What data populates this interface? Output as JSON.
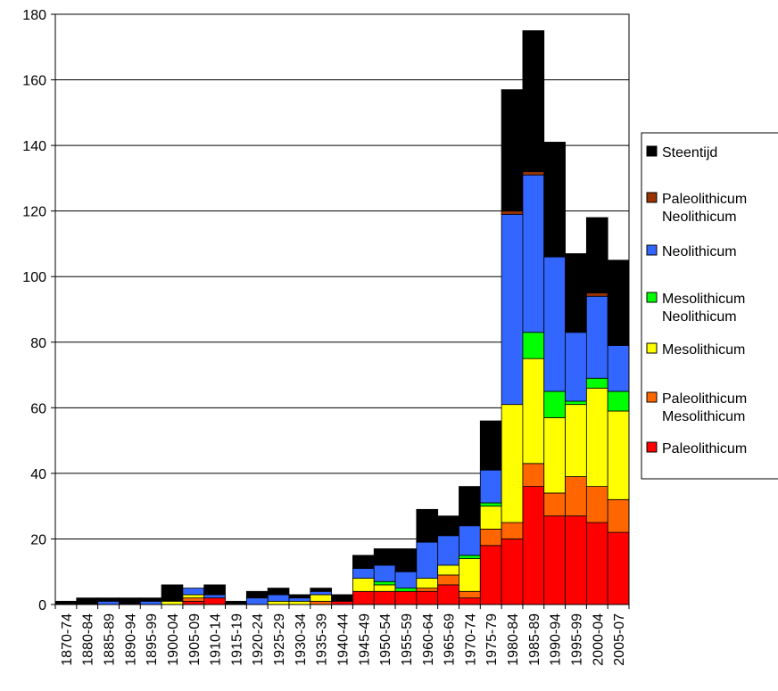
{
  "chart_data": {
    "type": "bar",
    "stacked": true,
    "categories": [
      "1870-74",
      "1880-84",
      "1885-89",
      "1890-94",
      "1895-99",
      "1900-04",
      "1905-09",
      "1910-14",
      "1915-19",
      "1920-24",
      "1925-29",
      "1930-34",
      "1935-39",
      "1940-44",
      "1945-49",
      "1950-54",
      "1955-59",
      "1960-64",
      "1965-69",
      "1970-74",
      "1975-79",
      "1980-84",
      "1985-89",
      "1990-94",
      "1995-99",
      "2000-04",
      "2005-07"
    ],
    "series": [
      {
        "name": "Paleolithicum",
        "color": "#ff0000",
        "values": [
          0,
          0,
          0,
          0,
          0,
          0,
          1,
          2,
          0,
          0,
          0,
          0,
          0,
          1,
          4,
          4,
          4,
          4,
          6,
          2,
          18,
          20,
          36,
          27,
          27,
          25,
          22
        ]
      },
      {
        "name": "Paleolithicum Mesolithicum",
        "color": "#ff6600",
        "values": [
          0,
          0,
          0,
          0,
          0,
          0,
          1,
          0,
          0,
          0,
          0,
          0,
          1,
          0,
          0,
          0,
          0,
          1,
          3,
          2,
          5,
          5,
          7,
          7,
          12,
          11,
          10
        ]
      },
      {
        "name": "Mesolithicum",
        "color": "#ffff00",
        "values": [
          0,
          0,
          0,
          0,
          0,
          1,
          1,
          0,
          0,
          0,
          1,
          1,
          2,
          0,
          4,
          2,
          0,
          3,
          3,
          10,
          7,
          36,
          32,
          23,
          22,
          30,
          27
        ]
      },
      {
        "name": "Mesolithicum Neolithicum",
        "color": "#00ff00",
        "values": [
          0,
          0,
          0,
          0,
          0,
          0,
          0,
          0,
          0,
          0,
          0,
          0,
          0,
          0,
          0,
          1,
          1,
          0,
          0,
          1,
          1,
          0,
          8,
          8,
          1,
          3,
          6
        ]
      },
      {
        "name": "Neolithicum",
        "color": "#3366ff",
        "values": [
          0,
          0,
          1,
          0,
          1,
          0,
          2,
          1,
          0,
          2,
          2,
          1,
          1,
          0,
          3,
          5,
          5,
          11,
          9,
          9,
          10,
          58,
          48,
          41,
          21,
          25,
          14
        ]
      },
      {
        "name": "Paleolithicum Neolithicum",
        "color": "#993300",
        "values": [
          0,
          0,
          0,
          0,
          0,
          0,
          0,
          0,
          0,
          0,
          0,
          0,
          0,
          0,
          0,
          0,
          0,
          0,
          0,
          0,
          0,
          1,
          1,
          0,
          0,
          1,
          0
        ]
      },
      {
        "name": "Steentijd",
        "color": "#000000",
        "values": [
          1,
          2,
          1,
          2,
          1,
          5,
          0,
          3,
          1,
          2,
          2,
          1,
          1,
          2,
          4,
          5,
          7,
          10,
          6,
          12,
          15,
          37,
          43,
          35,
          24,
          23,
          26
        ]
      }
    ],
    "title": "",
    "xlabel": "",
    "ylabel": "",
    "ylim": [
      0,
      180
    ],
    "yticks": [
      "0",
      "20",
      "40",
      "60",
      "80",
      "100",
      "120",
      "140",
      "160",
      "180"
    ],
    "grid": true,
    "legend_position": "right",
    "legend": [
      {
        "lines": [
          "Steentijd"
        ],
        "color": "#000000"
      },
      {
        "lines": [
          "Paleolithicum",
          "Neolithicum"
        ],
        "color": "#993300"
      },
      {
        "lines": [
          "Neolithicum"
        ],
        "color": "#3366ff"
      },
      {
        "lines": [
          "Mesolithicum",
          "Neolithicum"
        ],
        "color": "#00ff00"
      },
      {
        "lines": [
          "Mesolithicum"
        ],
        "color": "#ffff00"
      },
      {
        "lines": [
          "Paleolithicum",
          "Mesolithicum"
        ],
        "color": "#ff6600"
      },
      {
        "lines": [
          "Paleolithicum"
        ],
        "color": "#ff0000"
      }
    ]
  }
}
